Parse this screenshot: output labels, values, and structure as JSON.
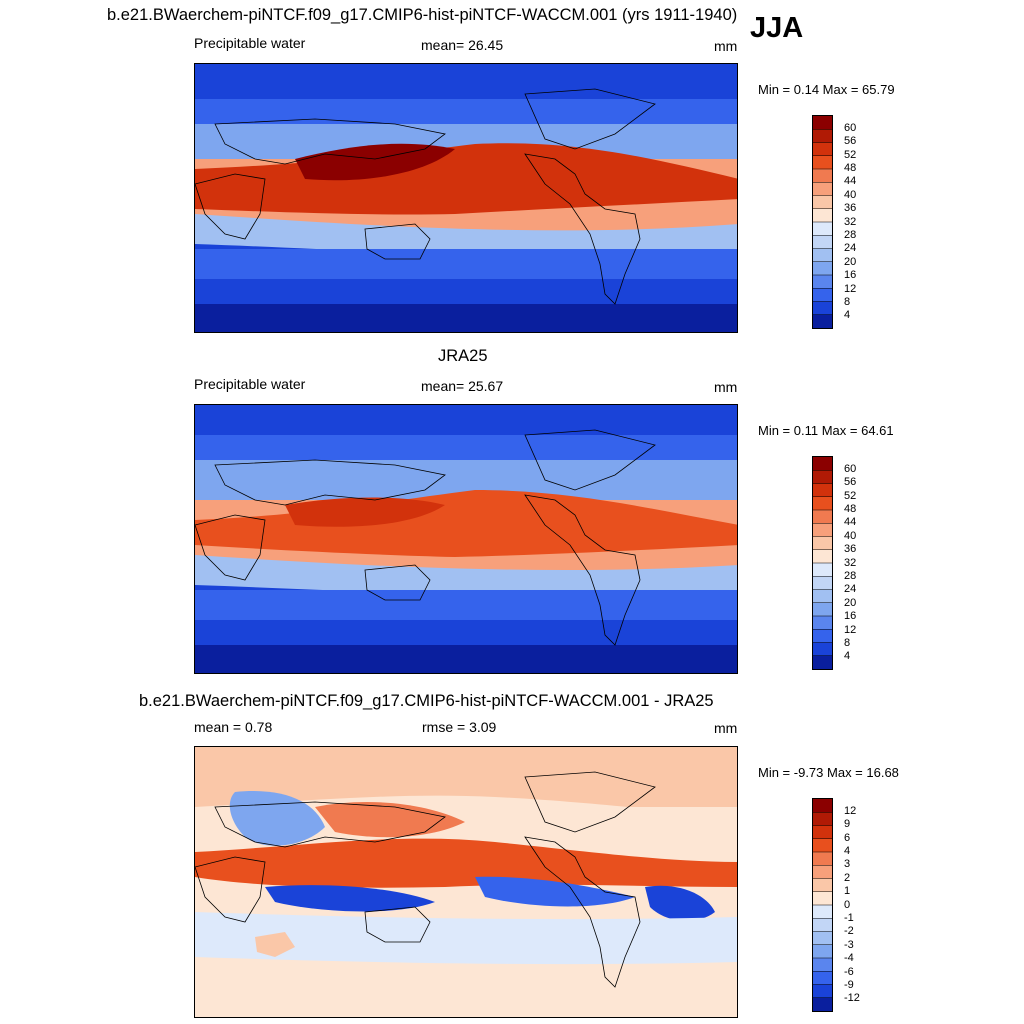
{
  "season": "JJA",
  "chart_data": [
    {
      "type": "heatmap",
      "title": "b.e21.BWaerchem-piNTCF.f09_g17.CMIP6-hist-piNTCF-WACCM.001 (yrs 1911-1940)",
      "variable": "Precipitable water",
      "mean_text": "mean=  26.45",
      "units": "mm",
      "minmax_text": "Min =   0.14 Max =  65.79",
      "min": 0.14,
      "max": 65.79,
      "mean": 26.45,
      "colorbar_levels": [
        "60",
        "56",
        "52",
        "48",
        "44",
        "40",
        "36",
        "32",
        "28",
        "24",
        "20",
        "16",
        "12",
        "8",
        "4"
      ],
      "colorbar_colors": [
        "#8b0000",
        "#b01a05",
        "#d2320c",
        "#e8501e",
        "#f07a50",
        "#f7a07b",
        "#fac7a8",
        "#fde6d4",
        "#dde9fb",
        "#c2d6f6",
        "#a1c0f2",
        "#7ea6ef",
        "#5a85ee",
        "#3563ec",
        "#1a43d8",
        "#0a1f9e"
      ]
    },
    {
      "type": "heatmap",
      "title": "JRA25",
      "variable": "Precipitable water",
      "mean_text": "mean=  25.67",
      "units": "mm",
      "minmax_text": "Min =   0.11 Max =  64.61",
      "min": 0.11,
      "max": 64.61,
      "mean": 25.67,
      "colorbar_levels": [
        "60",
        "56",
        "52",
        "48",
        "44",
        "40",
        "36",
        "32",
        "28",
        "24",
        "20",
        "16",
        "12",
        "8",
        "4"
      ],
      "colorbar_colors": [
        "#8b0000",
        "#b01a05",
        "#d2320c",
        "#e8501e",
        "#f07a50",
        "#f7a07b",
        "#fac7a8",
        "#fde6d4",
        "#dde9fb",
        "#c2d6f6",
        "#a1c0f2",
        "#7ea6ef",
        "#5a85ee",
        "#3563ec",
        "#1a43d8",
        "#0a1f9e"
      ]
    },
    {
      "type": "heatmap",
      "title": "b.e21.BWaerchem-piNTCF.f09_g17.CMIP6-hist-piNTCF-WACCM.001 - JRA25",
      "mean_text": "mean =   0.78",
      "rmse_text": "rmse =   3.09",
      "units": "mm",
      "minmax_text": "Min =  -9.73 Max =  16.68",
      "min": -9.73,
      "max": 16.68,
      "mean": 0.78,
      "rmse": 3.09,
      "colorbar_levels": [
        "12",
        "9",
        "6",
        "4",
        "3",
        "2",
        "1",
        "0",
        "-1",
        "-2",
        "-3",
        "-4",
        "-6",
        "-9",
        "-12"
      ],
      "colorbar_colors": [
        "#8b0000",
        "#b01a05",
        "#d2320c",
        "#e8501e",
        "#f07a50",
        "#f7a07b",
        "#fac7a8",
        "#fde6d4",
        "#dde9fb",
        "#c2d6f6",
        "#a1c0f2",
        "#7ea6ef",
        "#5a85ee",
        "#3563ec",
        "#1a43d8",
        "#0a1f9e"
      ]
    }
  ]
}
